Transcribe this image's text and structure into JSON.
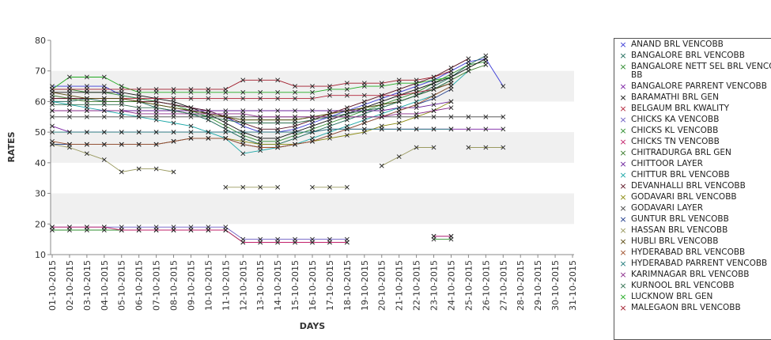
{
  "chart_data": {
    "type": "line",
    "title": "",
    "xlabel": "DAYS",
    "ylabel": "RATES",
    "ylim": [
      10,
      80
    ],
    "yticks": [
      10,
      20,
      30,
      40,
      50,
      60,
      70,
      80
    ],
    "grid": "alternating horizontal bands",
    "legend_position": "right",
    "marker": "x",
    "categories": [
      "01-10-2015",
      "02-10-2015",
      "03-10-2015",
      "04-10-2015",
      "05-10-2015",
      "06-10-2015",
      "07-10-2015",
      "08-10-2015",
      "09-10-2015",
      "10-10-2015",
      "11-10-2015",
      "12-10-2015",
      "13-10-2015",
      "14-10-2015",
      "15-10-2015",
      "16-10-2015",
      "17-10-2015",
      "18-10-2015",
      "19-10-2015",
      "20-10-2015",
      "21-10-2015",
      "22-10-2015",
      "23-10-2015",
      "24-10-2015",
      "25-10-2015",
      "26-10-2015",
      "27-10-2015",
      "28-10-2015",
      "29-10-2015",
      "30-10-2015",
      "31-10-2015"
    ],
    "series": [
      {
        "name": "ANAND BRL VENCOBB",
        "color": "#3b3bd6",
        "values": [
          65,
          65,
          65,
          65,
          62,
          61,
          60,
          59,
          58,
          57,
          55,
          52,
          50,
          50,
          51,
          53,
          55,
          57,
          59,
          61,
          63,
          65,
          67,
          70,
          73,
          74,
          65,
          null,
          null,
          null,
          null
        ]
      },
      {
        "name": "BANGALORE BRL VENCOBB",
        "color": "#1f6b5a",
        "values": [
          60,
          60,
          61,
          60,
          60,
          60,
          58,
          57,
          56,
          54,
          51,
          48,
          46,
          46,
          48,
          50,
          52,
          54,
          56,
          58,
          60,
          62,
          65,
          68,
          72,
          75,
          null,
          null,
          null,
          null,
          null
        ]
      },
      {
        "name": "BANGALORE NETT SEL BRL VENCOBB",
        "color": "#2e8b2e",
        "values": [
          64,
          64,
          63,
          63,
          62,
          61,
          60,
          59,
          57,
          55,
          52,
          49,
          47,
          47,
          49,
          51,
          53,
          55,
          57,
          59,
          61,
          63,
          66,
          69,
          72,
          73,
          null,
          null,
          null,
          null,
          null
        ]
      },
      {
        "name": "BANGALORE PARRENT VENCOBB",
        "color": "#7a1fa2",
        "values": [
          52,
          50,
          50,
          50,
          50,
          50,
          50,
          50,
          50,
          50,
          50,
          50,
          50,
          50,
          50,
          50,
          51,
          51,
          51,
          51,
          51,
          51,
          51,
          51,
          51,
          51,
          51,
          null,
          null,
          null,
          null
        ]
      },
      {
        "name": "BARAMATHI BRL GEN",
        "color": "#111111",
        "values": [
          63,
          63,
          63,
          63,
          63,
          62,
          61,
          60,
          58,
          56,
          53,
          50,
          48,
          48,
          50,
          52,
          54,
          56,
          58,
          60,
          62,
          64,
          66,
          68,
          71,
          74,
          null,
          null,
          null,
          null,
          null
        ]
      },
      {
        "name": "BELGAUM BRL KWALITY",
        "color": "#b3243a",
        "values": [
          61,
          61,
          61,
          61,
          61,
          61,
          61,
          61,
          61,
          61,
          61,
          61,
          61,
          61,
          61,
          61,
          62,
          62,
          62,
          62,
          62,
          63,
          64,
          66,
          null,
          null,
          null,
          null,
          null,
          null,
          null
        ]
      },
      {
        "name": "CHICKS KA VENCOBB",
        "color": "#6b5cc2",
        "values": [
          19,
          19,
          19,
          19,
          19,
          19,
          19,
          19,
          19,
          19,
          19,
          15,
          15,
          15,
          15,
          15,
          15,
          15,
          null,
          null,
          null,
          null,
          16,
          16,
          null,
          null,
          null,
          null,
          null,
          null,
          null
        ]
      },
      {
        "name": "CHICKS KL VENCOBB",
        "color": "#2f8f2f",
        "values": [
          18,
          18,
          18,
          18,
          18,
          18,
          18,
          18,
          18,
          18,
          18,
          14,
          14,
          14,
          14,
          14,
          14,
          14,
          null,
          null,
          null,
          null,
          15,
          15,
          null,
          null,
          null,
          null,
          null,
          null,
          null
        ]
      },
      {
        "name": "CHICKS TN VENCOBB",
        "color": "#c2206a",
        "values": [
          19,
          19,
          19,
          19,
          18,
          18,
          18,
          18,
          18,
          18,
          18,
          14,
          14,
          14,
          14,
          14,
          14,
          14,
          null,
          null,
          null,
          null,
          16,
          16,
          null,
          null,
          null,
          null,
          null,
          null,
          null
        ]
      },
      {
        "name": "CHITRADURGA BRL GEN",
        "color": "#3a7a2a",
        "values": [
          62,
          61,
          60,
          60,
          60,
          60,
          59,
          58,
          57,
          56,
          55,
          54,
          54,
          54,
          54,
          55,
          56,
          57,
          58,
          59,
          60,
          62,
          64,
          67,
          70,
          72,
          null,
          null,
          null,
          null,
          null
        ]
      },
      {
        "name": "CHITTOOR LAYER",
        "color": "#6a1f9a",
        "values": [
          57,
          57,
          57,
          57,
          57,
          57,
          57,
          57,
          57,
          57,
          57,
          57,
          57,
          57,
          57,
          57,
          57,
          57,
          57,
          57,
          58,
          58,
          59,
          60,
          null,
          null,
          null,
          null,
          null,
          null,
          null
        ]
      },
      {
        "name": "CHITTUR BRL VENCOBB",
        "color": "#1aa6a6",
        "values": [
          60,
          59,
          58,
          57,
          56,
          55,
          54,
          53,
          52,
          50,
          48,
          43,
          44,
          45,
          46,
          48,
          50,
          52,
          54,
          56,
          58,
          60,
          62,
          65,
          70,
          null,
          null,
          null,
          null,
          null,
          null
        ]
      },
      {
        "name": "DEVANHALLI BRL VENCOBB",
        "color": "#5a1020",
        "values": [
          61,
          61,
          61,
          61,
          61,
          60,
          60,
          59,
          58,
          57,
          55,
          53,
          51,
          51,
          52,
          54,
          56,
          58,
          60,
          62,
          64,
          66,
          68,
          71,
          74,
          null,
          null,
          null,
          null,
          null,
          null
        ]
      },
      {
        "name": "GODAVARI BRL VENCOBB",
        "color": "#8a8a10",
        "values": [
          46,
          46,
          46,
          46,
          46,
          46,
          46,
          47,
          48,
          48,
          48,
          47,
          46,
          46,
          46,
          47,
          48,
          49,
          50,
          52,
          53,
          55,
          57,
          60,
          null,
          null,
          null,
          null,
          null,
          null,
          null
        ]
      },
      {
        "name": "GODAVARI LAYER",
        "color": "#444444",
        "values": [
          55,
          55,
          55,
          55,
          55,
          55,
          55,
          55,
          55,
          55,
          55,
          55,
          55,
          55,
          55,
          55,
          55,
          55,
          55,
          55,
          55,
          55,
          55,
          55,
          55,
          55,
          55,
          null,
          null,
          null,
          null
        ]
      },
      {
        "name": "GUNTUR BRL VENCOBB",
        "color": "#1f3a8a",
        "values": [
          46,
          46,
          46,
          46,
          46,
          46,
          46,
          47,
          48,
          48,
          48,
          46,
          45,
          45,
          46,
          47,
          49,
          51,
          53,
          55,
          57,
          59,
          61,
          64,
          null,
          null,
          null,
          null,
          null,
          null,
          null
        ]
      },
      {
        "name": "HASSAN BRL VENCOBB",
        "color": "#9a9a60",
        "values": [
          46,
          45,
          43,
          41,
          37,
          38,
          38,
          37,
          null,
          null,
          32,
          32,
          32,
          32,
          null,
          32,
          32,
          32,
          null,
          39,
          42,
          45,
          45,
          null,
          45,
          45,
          45,
          null,
          null,
          null,
          null
        ]
      },
      {
        "name": "HUBLI BRL VENCOBB",
        "color": "#5a4a10",
        "values": [
          63,
          62,
          61,
          61,
          61,
          60,
          59,
          58,
          57,
          56,
          55,
          54,
          54,
          54,
          54,
          55,
          56,
          57,
          58,
          59,
          60,
          62,
          64,
          66,
          null,
          null,
          null,
          null,
          null,
          null,
          null
        ]
      },
      {
        "name": "HYDERABAD BRL VENCOBB",
        "color": "#a0522d",
        "values": [
          47,
          46,
          46,
          46,
          46,
          46,
          46,
          47,
          48,
          48,
          48,
          46,
          45,
          45,
          46,
          47,
          49,
          51,
          53,
          55,
          57,
          59,
          62,
          65,
          null,
          null,
          null,
          null,
          null,
          null,
          null
        ]
      },
      {
        "name": "HYDERABAD PARRENT VENCOBB",
        "color": "#1f7a7a",
        "values": [
          50,
          50,
          50,
          50,
          50,
          50,
          50,
          50,
          50,
          50,
          50,
          50,
          50,
          50,
          50,
          50,
          51,
          51,
          51,
          51,
          51,
          51,
          51,
          51,
          null,
          null,
          null,
          null,
          null,
          null,
          null
        ]
      },
      {
        "name": "KARIMNAGAR BRL VENCOBB",
        "color": "#8a2a8a",
        "values": [
          57,
          57,
          57,
          57,
          57,
          56,
          56,
          56,
          56,
          56,
          56,
          56,
          55,
          55,
          55,
          55,
          55,
          55,
          55,
          55,
          56,
          56,
          57,
          58,
          null,
          null,
          null,
          null,
          null,
          null,
          null
        ]
      },
      {
        "name": "KURNOOL BRL VENCOBB",
        "color": "#2f6f4f",
        "values": [
          59,
          59,
          59,
          59,
          59,
          58,
          58,
          57,
          56,
          55,
          54,
          53,
          53,
          53,
          53,
          54,
          55,
          56,
          57,
          58,
          60,
          62,
          64,
          67,
          null,
          null,
          null,
          null,
          null,
          null,
          null
        ]
      },
      {
        "name": "LUCKNOW BRL GEN",
        "color": "#22aa22",
        "values": [
          64,
          68,
          68,
          68,
          65,
          63,
          63,
          63,
          63,
          63,
          63,
          63,
          63,
          63,
          63,
          63,
          64,
          64,
          65,
          65,
          66,
          66,
          67,
          68,
          null,
          null,
          null,
          null,
          null,
          null,
          null
        ]
      },
      {
        "name": "MALEGAON BRL VENCOBB",
        "color": "#a01a2a",
        "values": [
          64,
          64,
          64,
          64,
          64,
          64,
          64,
          64,
          64,
          64,
          64,
          67,
          67,
          67,
          65,
          65,
          65,
          66,
          66,
          66,
          67,
          67,
          68,
          70,
          null,
          null,
          null,
          null,
          null,
          null,
          null
        ]
      }
    ]
  }
}
